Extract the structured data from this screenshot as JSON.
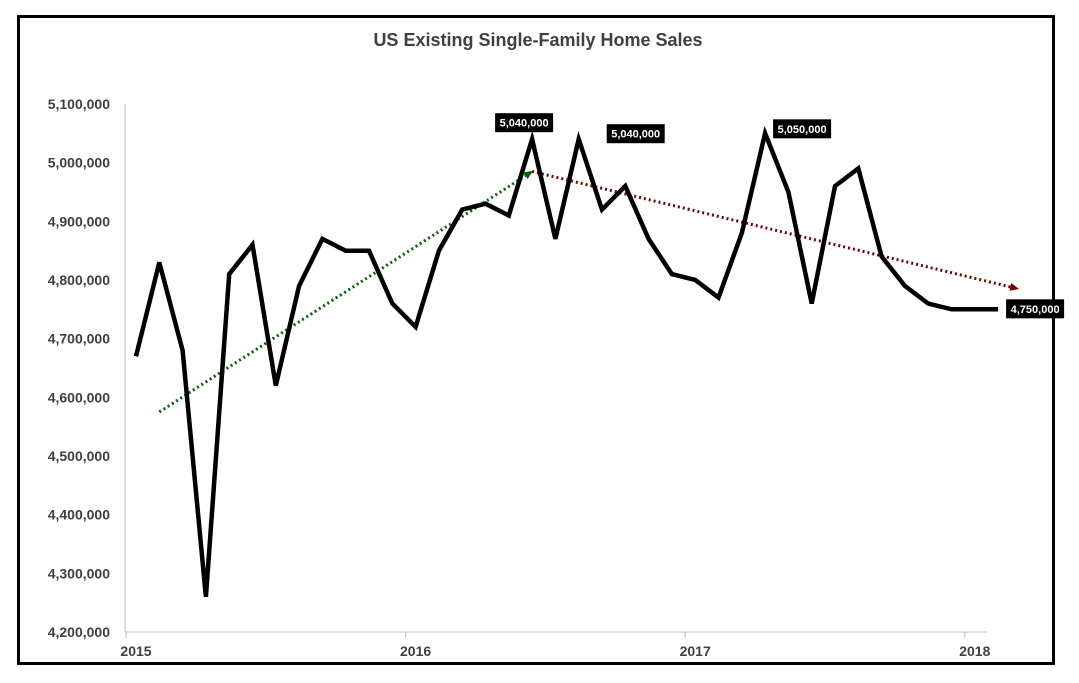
{
  "chart_data": {
    "type": "line",
    "title": "US Existing Single-Family Home Sales",
    "xlabel": "",
    "ylabel": "",
    "ylim": [
      4200000,
      5100000
    ],
    "y_ticks": [
      4200000,
      4300000,
      4400000,
      4500000,
      4600000,
      4700000,
      4800000,
      4900000,
      5000000,
      5100000
    ],
    "y_tick_labels": [
      "4,200,000",
      "4,300,000",
      "4,400,000",
      "4,500,000",
      "4,600,000",
      "4,700,000",
      "4,800,000",
      "4,900,000",
      "5,000,000",
      "5,100,000"
    ],
    "x_tick_labels": [
      "2015",
      "2016",
      "2017",
      "2018"
    ],
    "grid": false,
    "legend": "none",
    "series": [
      {
        "color": "#000000",
        "x": [
          "2015-01",
          "2015-02",
          "2015-03",
          "2015-04",
          "2015-05",
          "2015-06",
          "2015-07",
          "2015-08",
          "2015-09",
          "2015-10",
          "2015-11",
          "2015-12",
          "2016-01",
          "2016-02",
          "2016-03",
          "2016-04",
          "2016-05",
          "2016-06",
          "2016-07",
          "2016-08",
          "2016-09",
          "2016-10",
          "2016-11",
          "2016-12",
          "2017-01",
          "2017-02",
          "2017-03",
          "2017-04",
          "2017-05",
          "2017-06",
          "2017-07",
          "2017-08",
          "2017-09",
          "2017-10",
          "2017-11",
          "2017-12",
          "2018-01",
          "2018-02"
        ],
        "values": [
          4670000,
          4830000,
          4680000,
          4260000,
          4810000,
          4860000,
          4620000,
          4790000,
          4870000,
          4850000,
          4850000,
          4760000,
          4720000,
          4850000,
          4920000,
          4930000,
          4910000,
          5040000,
          4870000,
          5040000,
          4920000,
          4960000,
          4870000,
          4810000,
          4800000,
          4770000,
          4880000,
          5050000,
          4950000,
          4760000,
          4960000,
          4990000,
          4840000,
          4790000,
          4760000,
          4750000,
          4750000,
          4750000
        ]
      }
    ],
    "trend_lines": [
      {
        "color": "#006400",
        "from": [
          "2015-02",
          4575000
        ],
        "to": [
          "2016-06",
          4985000
        ]
      },
      {
        "color": "#7b0000",
        "from": [
          "2016-06",
          4985000
        ],
        "to": [
          "2018-02",
          4785000
        ]
      }
    ],
    "data_labels": [
      {
        "x": "2016-06",
        "value": 5040000,
        "text": "5,040,000"
      },
      {
        "x": "2016-08",
        "value": 5040000,
        "text": "5,040,000"
      },
      {
        "x": "2017-04",
        "value": 5050000,
        "text": "5,050,000"
      },
      {
        "x": "2018-02",
        "value": 4750000,
        "text": "4,750,000"
      }
    ],
    "colors": {
      "line": "#000000",
      "axis_text": "#404040",
      "axis_line": "#bfbfbf",
      "label_bg": "#000000",
      "label_text": "#ffffff"
    }
  }
}
